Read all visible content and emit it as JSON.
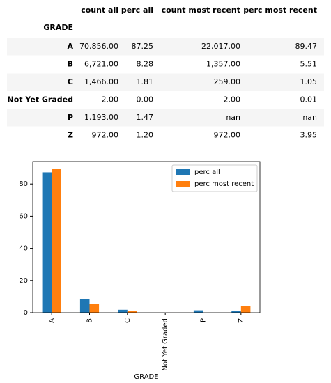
{
  "table": {
    "columns": [
      "count all",
      "perc all",
      "count most recent",
      "perc most recent"
    ],
    "index_name": "GRADE",
    "rows": [
      [
        "A",
        "70,856.00",
        "87.25",
        "22,017.00",
        "89.47"
      ],
      [
        "B",
        "6,721.00",
        "8.28",
        "1,357.00",
        "5.51"
      ],
      [
        "C",
        "1,466.00",
        "1.81",
        "259.00",
        "1.05"
      ],
      [
        "Not Yet Graded",
        "2.00",
        "0.00",
        "2.00",
        "0.01"
      ],
      [
        "P",
        "1,193.00",
        "1.47",
        "nan",
        "nan"
      ],
      [
        "Z",
        "972.00",
        "1.20",
        "972.00",
        "3.95"
      ]
    ]
  },
  "chart_data": {
    "type": "bar",
    "x_label": "GRADE",
    "categories": [
      "A",
      "B",
      "C",
      "Not Yet Graded",
      "P",
      "Z"
    ],
    "series": [
      {
        "name": "perc all",
        "color": "#1f77b4",
        "values": [
          87.25,
          8.28,
          1.81,
          0.0,
          1.47,
          1.2
        ]
      },
      {
        "name": "perc most recent",
        "color": "#ff7f0e",
        "values": [
          89.47,
          5.51,
          1.05,
          0.01,
          null,
          3.95
        ]
      }
    ],
    "ylim": [
      0,
      93.94
    ],
    "yticks": [
      0,
      20,
      40,
      60,
      80
    ],
    "legend": "upper right"
  }
}
